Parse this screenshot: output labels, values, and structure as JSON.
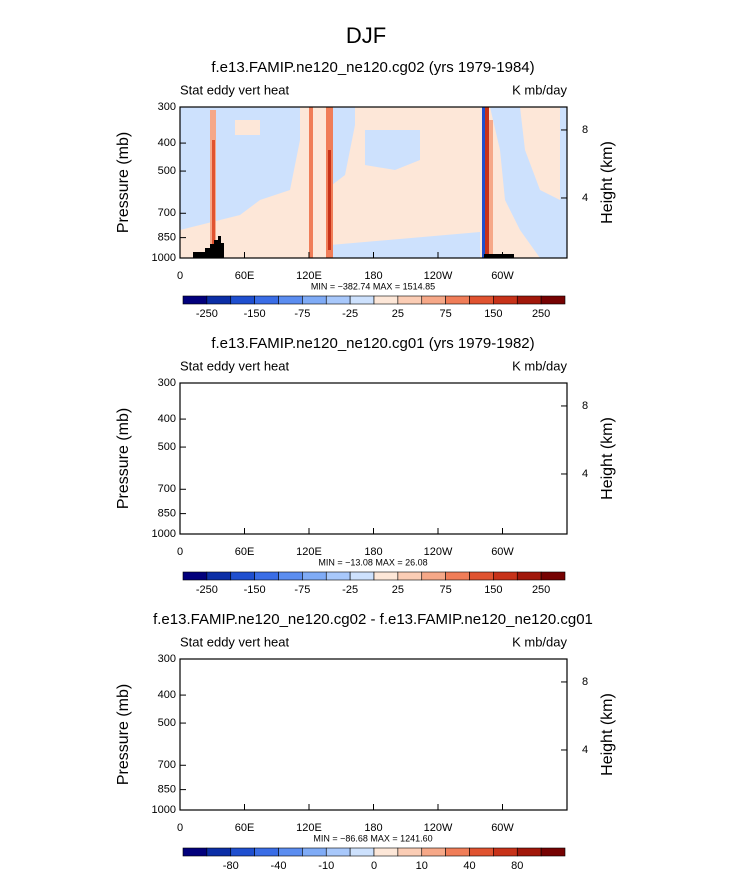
{
  "title": "DJF",
  "chart_data": [
    {
      "type": "contour",
      "title": "f.e13.FAMIP.ne120_ne120.cg02 (yrs 1979-1984)",
      "left_label": "Stat eddy vert heat",
      "right_label": "K mb/day",
      "ylabel": "Pressure (mb)",
      "y2label": "Height (km)",
      "xlim": [
        0,
        360
      ],
      "xticks": [
        0,
        {
          "value": 60,
          "label": "60E"
        },
        {
          "value": 120,
          "label": "120E"
        },
        180,
        {
          "value": 240,
          "label": "120W"
        },
        {
          "value": 300,
          "label": "60W"
        }
      ],
      "ylim": [
        1000,
        300
      ],
      "yticks": [
        300,
        400,
        500,
        700,
        850,
        1000
      ],
      "ylog": true,
      "y2lim": [
        0.47,
        9.35
      ],
      "y2ticks": [
        4,
        8
      ],
      "min_max_label": "MIN = −382.74   MAX = 1514.85",
      "colorbar": {
        "colors": [
          "#02007c",
          "#0b2ea6",
          "#1f4fcf",
          "#3a6de6",
          "#5b8df0",
          "#7fabf6",
          "#a8c8fb",
          "#cde1fd",
          "#fde7d8",
          "#fbcdb5",
          "#f6a888",
          "#f07d58",
          "#e05330",
          "#c73219",
          "#a1170a",
          "#760202"
        ],
        "ticks": [
          -250,
          null,
          -150,
          null,
          -75,
          null,
          -25,
          null,
          25,
          null,
          75,
          null,
          150,
          null,
          250
        ]
      }
    },
    {
      "type": "contour",
      "title": "f.e13.FAMIP.ne120_ne120.cg01 (yrs 1979-1982)",
      "left_label": "Stat eddy vert heat",
      "right_label": "K mb/day",
      "ylabel": "Pressure (mb)",
      "y2label": "Height (km)",
      "xlim": [
        0,
        360
      ],
      "xticks": [
        0,
        {
          "value": 60,
          "label": "60E"
        },
        {
          "value": 120,
          "label": "120E"
        },
        180,
        {
          "value": 240,
          "label": "120W"
        },
        {
          "value": 300,
          "label": "60W"
        }
      ],
      "ylim": [
        1000,
        300
      ],
      "yticks": [
        300,
        400,
        500,
        700,
        850,
        1000
      ],
      "ylog": true,
      "y2lim": [
        0.47,
        9.35
      ],
      "y2ticks": [
        4,
        8
      ],
      "min_max_label": "MIN = −13.08   MAX = 26.08",
      "colorbar": {
        "colors": [
          "#02007c",
          "#0b2ea6",
          "#1f4fcf",
          "#3a6de6",
          "#5b8df0",
          "#7fabf6",
          "#a8c8fb",
          "#cde1fd",
          "#fde7d8",
          "#fbcdb5",
          "#f6a888",
          "#f07d58",
          "#e05330",
          "#c73219",
          "#a1170a",
          "#760202"
        ],
        "ticks": [
          -250,
          null,
          -150,
          null,
          -75,
          null,
          -25,
          null,
          25,
          null,
          75,
          null,
          150,
          null,
          250
        ]
      }
    },
    {
      "type": "contour",
      "title": "f.e13.FAMIP.ne120_ne120.cg02 - f.e13.FAMIP.ne120_ne120.cg01",
      "left_label": "Stat eddy vert heat",
      "right_label": "K mb/day",
      "ylabel": "Pressure (mb)",
      "y2label": "Height (km)",
      "xlim": [
        0,
        360
      ],
      "xticks": [
        0,
        {
          "value": 60,
          "label": "60E"
        },
        {
          "value": 120,
          "label": "120E"
        },
        180,
        {
          "value": 240,
          "label": "120W"
        },
        {
          "value": 300,
          "label": "60W"
        }
      ],
      "ylim": [
        1000,
        300
      ],
      "yticks": [
        300,
        400,
        500,
        700,
        850,
        1000
      ],
      "ylog": true,
      "y2lim": [
        0.47,
        9.35
      ],
      "y2ticks": [
        4,
        8
      ],
      "min_max_label": "MIN = −86.68   MAX = 1241.60",
      "colorbar": {
        "colors": [
          "#02007c",
          "#0b2ea6",
          "#1f4fcf",
          "#3a6de6",
          "#5b8df0",
          "#7fabf6",
          "#a8c8fb",
          "#cde1fd",
          "#fde7d8",
          "#fbcdb5",
          "#f6a888",
          "#f07d58",
          "#e05330",
          "#c73219",
          "#a1170a",
          "#760202"
        ],
        "ticks": [
          null,
          -80,
          null,
          -40,
          null,
          -10,
          null,
          0,
          null,
          10,
          null,
          40,
          null,
          80,
          null
        ]
      }
    }
  ]
}
